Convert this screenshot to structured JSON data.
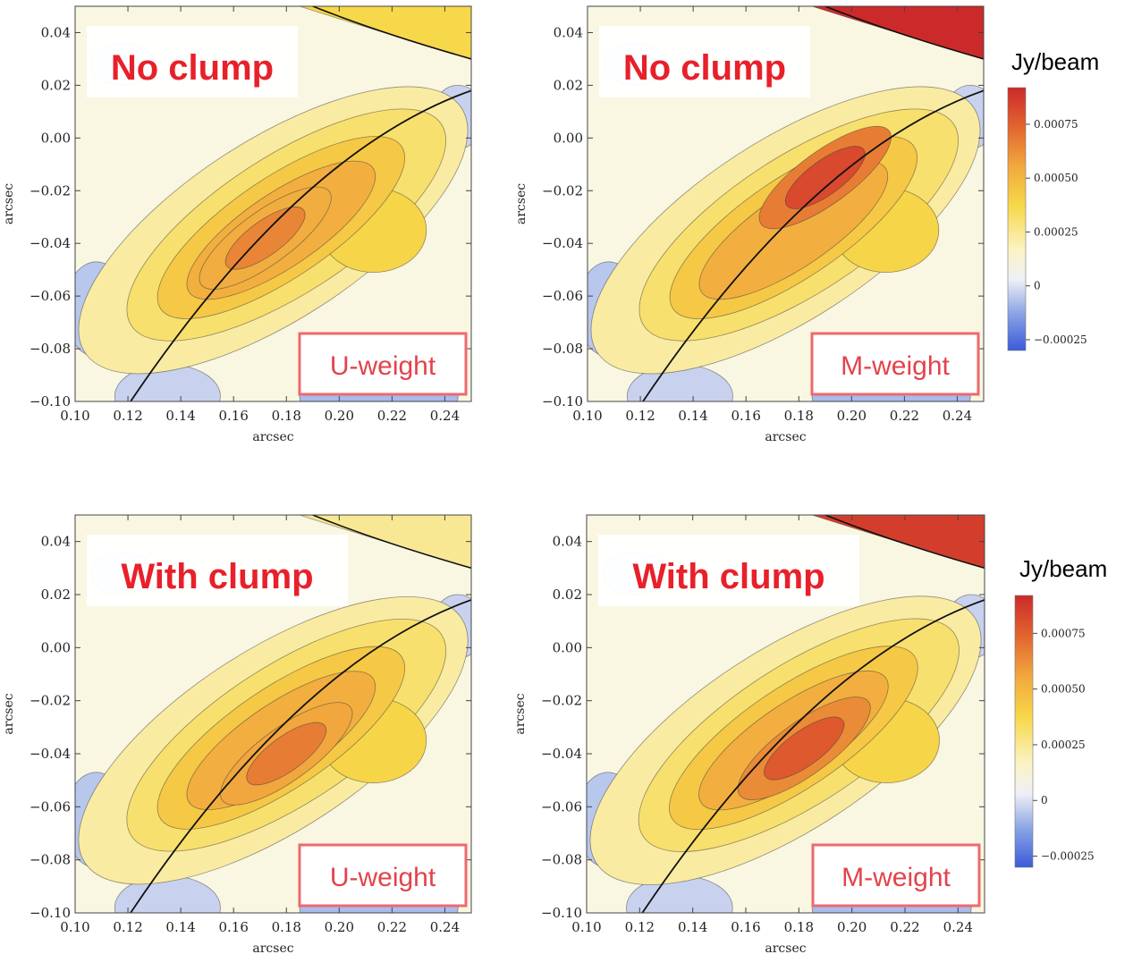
{
  "figure": {
    "panels": [
      {
        "id": "no-clump-u",
        "label": "No clump",
        "weight": "U-weight",
        "ylabel": "arcsec",
        "xlabel": "arcsec",
        "hotspot": 0.78,
        "upper_arc_hot": 0.55
      },
      {
        "id": "no-clump-m",
        "label": "No clump",
        "weight": "M-weight",
        "ylabel": "arcsec",
        "xlabel": "arcsec",
        "hotspot": 0.92,
        "upper_arc_hot": 1.0
      },
      {
        "id": "with-clump-u",
        "label": "With clump",
        "weight": "U-weight",
        "ylabel": "arcsec",
        "xlabel": "arcsec",
        "hotspot": 0.8,
        "upper_arc_hot": 0.45
      },
      {
        "id": "with-clump-m",
        "label": "With clump",
        "weight": "M-weight",
        "ylabel": "arcsec",
        "xlabel": "arcsec",
        "hotspot": 0.88,
        "upper_arc_hot": 0.95
      }
    ],
    "colorbars": [
      {
        "unit": "Jy/beam",
        "ticks": [
          "0.00075",
          "0.00050",
          "0.00025",
          "0",
          "−0.00025"
        ]
      },
      {
        "unit": "Jy/beam",
        "ticks": [
          "0.00075",
          "0.00050",
          "0.00025",
          "0",
          "−0.00025"
        ]
      }
    ]
  },
  "chart_data": [
    {
      "type": "heatmap",
      "title": "No clump",
      "annotation": "U-weight",
      "xlabel": "arcsec",
      "ylabel": "arcsec",
      "xlim": [
        0.1,
        0.25
      ],
      "ylim": [
        -0.1,
        0.05
      ],
      "xticks": [
        "0.10",
        "0.12",
        "0.14",
        "0.16",
        "0.18",
        "0.20",
        "0.22",
        "0.24"
      ],
      "yticks": [
        "0.04",
        "0.02",
        "0.00",
        "−0.02",
        "−0.04",
        "−0.06",
        "−0.08",
        "−0.10"
      ],
      "colorbar": {
        "label": "Jy/beam",
        "range": [
          -0.0003,
          0.00092
        ],
        "ticks": [
          0.00075,
          0.0005,
          0.00025,
          0,
          -0.00025
        ]
      },
      "peak_location": [
        0.172,
        -0.038
      ]
    },
    {
      "type": "heatmap",
      "title": "No clump",
      "annotation": "M-weight",
      "xlabel": "arcsec",
      "ylabel": "arcsec",
      "xlim": [
        0.1,
        0.25
      ],
      "ylim": [
        -0.1,
        0.05
      ],
      "xticks": [
        "0.10",
        "0.12",
        "0.14",
        "0.16",
        "0.18",
        "0.20",
        "0.22",
        "0.24"
      ],
      "yticks": [
        "0.04",
        "0.02",
        "0.00",
        "−0.02",
        "−0.04",
        "−0.06",
        "−0.08",
        "−0.10"
      ],
      "colorbar": {
        "label": "Jy/beam",
        "range": [
          -0.0003,
          0.00092
        ],
        "ticks": [
          0.00075,
          0.0005,
          0.00025,
          0,
          -0.00025
        ]
      },
      "peak_location": [
        0.19,
        -0.015
      ]
    },
    {
      "type": "heatmap",
      "title": "With clump",
      "annotation": "U-weight",
      "xlabel": "arcsec",
      "ylabel": "arcsec",
      "xlim": [
        0.1,
        0.25
      ],
      "ylim": [
        -0.1,
        0.05
      ],
      "xticks": [
        "0.10",
        "0.12",
        "0.14",
        "0.16",
        "0.18",
        "0.20",
        "0.22",
        "0.24"
      ],
      "yticks": [
        "0.04",
        "0.02",
        "0.00",
        "−0.02",
        "−0.04",
        "−0.06",
        "−0.08",
        "−0.10"
      ],
      "colorbar": {
        "label": "Jy/beam",
        "range": [
          -0.0003,
          0.00092
        ],
        "ticks": [
          0.00075,
          0.0005,
          0.00025,
          0,
          -0.00025
        ]
      },
      "peak_location": [
        0.18,
        -0.04
      ]
    },
    {
      "type": "heatmap",
      "title": "With clump",
      "annotation": "M-weight",
      "xlabel": "arcsec",
      "ylabel": "arcsec",
      "xlim": [
        0.1,
        0.25
      ],
      "ylim": [
        -0.1,
        0.05
      ],
      "xticks": [
        "0.10",
        "0.12",
        "0.14",
        "0.16",
        "0.18",
        "0.20",
        "0.22",
        "0.24"
      ],
      "yticks": [
        "0.04",
        "0.02",
        "0.00",
        "−0.02",
        "−0.04",
        "−0.06",
        "−0.08",
        "−0.10"
      ],
      "colorbar": {
        "label": "Jy/beam",
        "range": [
          -0.0003,
          0.00092
        ],
        "ticks": [
          0.00075,
          0.0005,
          0.00025,
          0,
          -0.00025
        ]
      },
      "peak_location": [
        0.182,
        -0.038
      ]
    }
  ]
}
